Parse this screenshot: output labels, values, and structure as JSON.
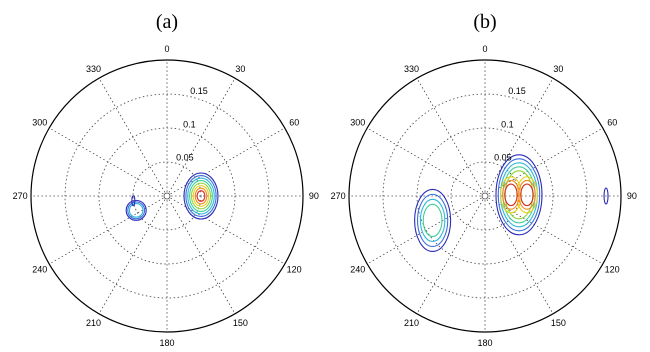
{
  "chart_data": [
    {
      "type": "polar-contour",
      "panel_label": "(a)",
      "angle_ticks": [
        "0",
        "30",
        "60",
        "90",
        "120",
        "150",
        "180",
        "210",
        "240",
        "270",
        "300",
        "330"
      ],
      "radial_ticks": [
        "0.05",
        "0.1",
        "0.15"
      ],
      "radial_values": [
        0.05,
        0.1,
        0.15
      ],
      "rmax": 0.2,
      "angle_direction": "clockwise",
      "zero_location": "top",
      "grid": true,
      "peaks": [
        {
          "azimuth_deg": 90,
          "radius": 0.05,
          "levels": 8
        },
        {
          "azimuth_deg": 245,
          "radius": 0.05,
          "levels": 3
        },
        {
          "azimuth_deg": 262,
          "radius": 0.05,
          "levels": 1
        }
      ]
    },
    {
      "type": "polar-contour",
      "panel_label": "(b)",
      "angle_ticks": [
        "0",
        "30",
        "60",
        "90",
        "120",
        "150",
        "180",
        "210",
        "240",
        "270",
        "300",
        "330"
      ],
      "radial_ticks": [
        "0.05",
        "0.1",
        "0.15"
      ],
      "radial_values": [
        0.05,
        0.1,
        0.15
      ],
      "rmax": 0.2,
      "angle_direction": "clockwise",
      "zero_location": "top",
      "grid": true,
      "peaks": [
        {
          "azimuth_deg": 88,
          "radius": 0.05,
          "levels": 8
        },
        {
          "azimuth_deg": 245,
          "radius": 0.085,
          "levels": 4
        },
        {
          "azimuth_deg": 90,
          "radius": 0.178,
          "levels": 1
        }
      ]
    }
  ]
}
